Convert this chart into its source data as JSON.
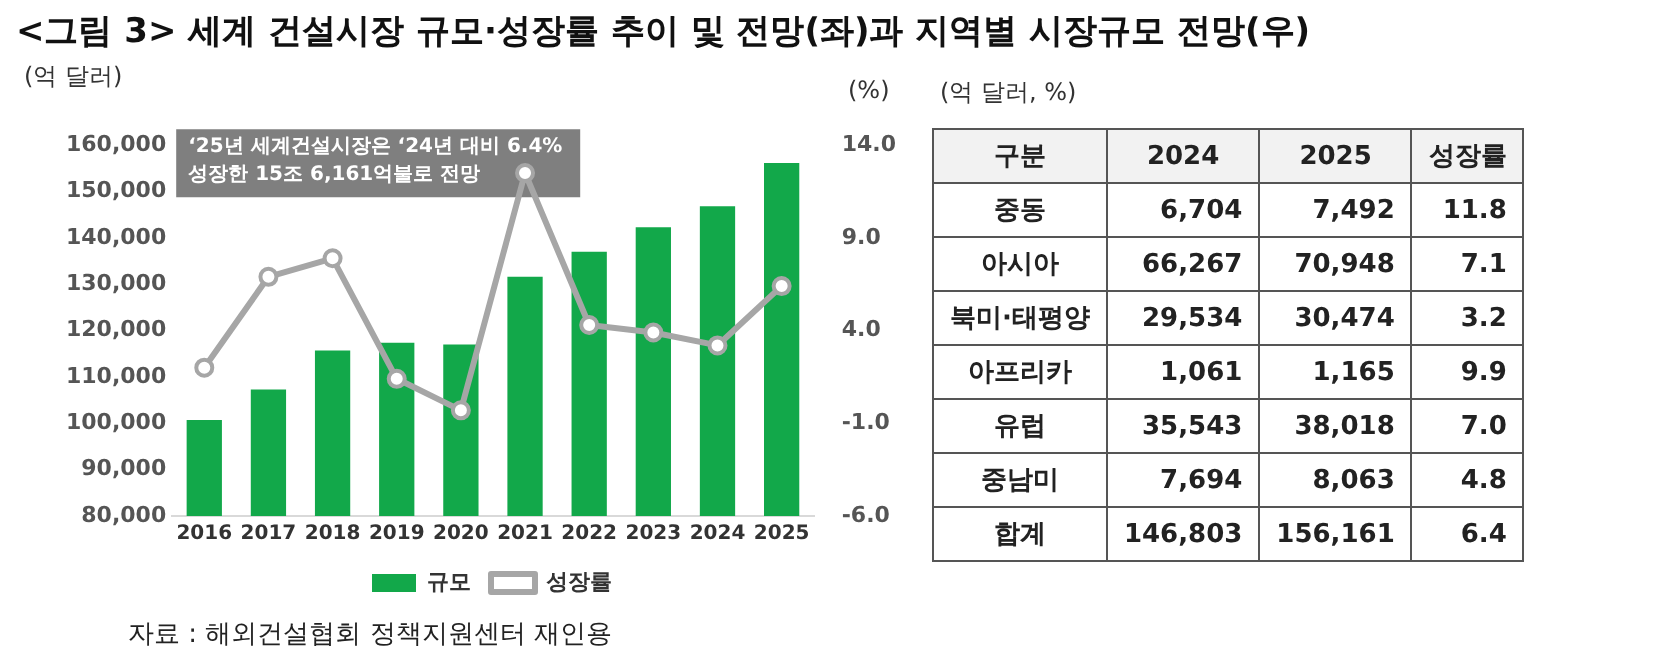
{
  "chart_data": [
    {
      "type": "bar",
      "title": "<그림 3> 세계 건설시장 규모·성장률 추이 및 전망(좌)과 지역별 시장규모 전망(우)",
      "ylabel": "(억 달러)",
      "y2label": "(%)",
      "categories": [
        "2016",
        "2017",
        "2018",
        "2019",
        "2020",
        "2021",
        "2022",
        "2023",
        "2024",
        "2025"
      ],
      "series": [
        {
          "name": "규모",
          "color": "#12a84a",
          "values": [
            100700,
            107300,
            115700,
            117400,
            117000,
            131600,
            137000,
            142300,
            146803,
            156161
          ]
        },
        {
          "name": "성장률",
          "type": "line",
          "axis": "y2",
          "color": "#a6a6a6",
          "values": [
            2.0,
            6.9,
            7.9,
            1.4,
            -0.3,
            12.5,
            4.3,
            3.9,
            3.2,
            6.4
          ]
        }
      ],
      "ylim": [
        80000,
        160000
      ],
      "yticks": [
        {
          "value": 80000,
          "label": "80,000"
        },
        {
          "value": 90000,
          "label": "90,000"
        },
        {
          "value": 100000,
          "label": "100,000"
        },
        {
          "value": 110000,
          "label": "110,000"
        },
        {
          "value": 120000,
          "label": "120,000"
        },
        {
          "value": 130000,
          "label": "130,000"
        },
        {
          "value": 140000,
          "label": "140,000"
        },
        {
          "value": 150000,
          "label": "150,000"
        },
        {
          "value": 160000,
          "label": "160,000"
        }
      ],
      "y2lim": [
        -6,
        14
      ],
      "y2ticks": [
        {
          "value": -6,
          "label": "-6.0"
        },
        {
          "value": -1,
          "label": "-1.0"
        },
        {
          "value": 4,
          "label": "4.0"
        },
        {
          "value": 9,
          "label": "9.0"
        },
        {
          "value": 14,
          "label": "14.0"
        }
      ],
      "marker": "circle",
      "legend": "bottom",
      "grid": false,
      "annotations": [
        "‘25년 세계건설시장은 ‘24년 대비 6.4% 성장한 15조 6,161억불로 전망",
        "자료 : 해외건설협회 정책지원센터 재인용"
      ]
    },
    {
      "type": "other",
      "title": "(억 달러, %)",
      "xlabel": "구분",
      "categories": [
        "중동",
        "아시아",
        "북미·태평양",
        "아프리카",
        "유럽",
        "중남미",
        "합계"
      ],
      "series": [
        {
          "name": "2024",
          "values": [
            6704,
            66267,
            29534,
            1061,
            35543,
            7694,
            146803
          ],
          "value_labels": [
            "6,704",
            "66,267",
            "29,534",
            "1,061",
            "35,543",
            "7,694",
            "146,803"
          ]
        },
        {
          "name": "2025",
          "values": [
            7492,
            70948,
            30474,
            1165,
            38018,
            8063,
            156161
          ],
          "value_labels": [
            "7,492",
            "70,948",
            "30,474",
            "1,165",
            "38,018",
            "8,063",
            "156,161"
          ]
        },
        {
          "name": "성장률",
          "values": [
            11.8,
            7.1,
            3.2,
            9.9,
            7.0,
            4.8,
            6.4
          ],
          "value_labels": [
            "11.8",
            "7.1",
            "3.2",
            "9.9",
            "7.0",
            "4.8",
            "6.4"
          ]
        }
      ]
    }
  ]
}
